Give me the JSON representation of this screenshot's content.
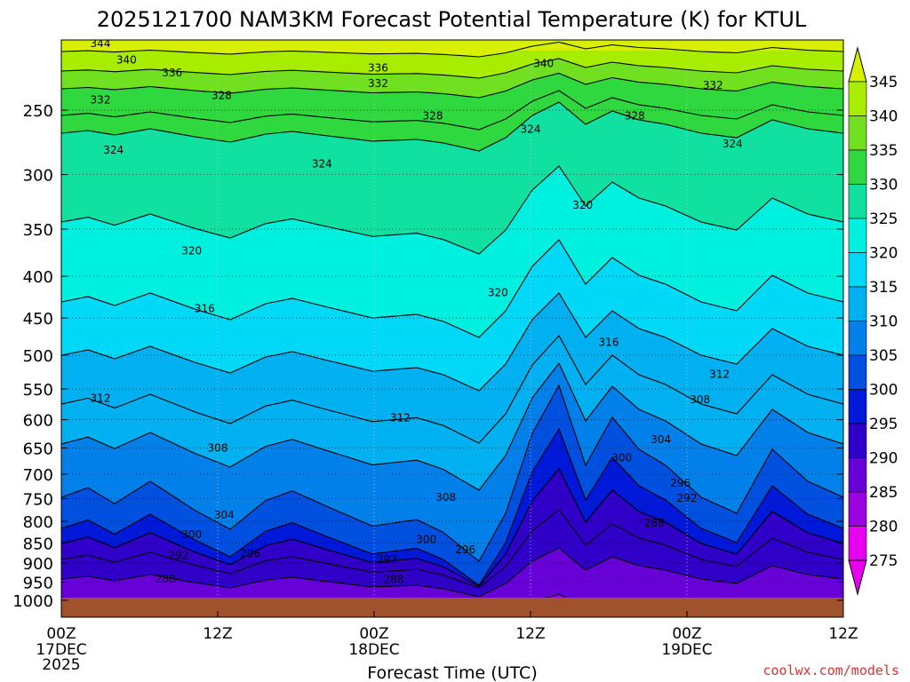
{
  "chart_data": {
    "type": "heatmap",
    "title": "2025121700 NAM3KM Forecast Potential Temperature (K) for KTUL",
    "xlabel": "Forecast Time (UTC)",
    "ylabel": "",
    "credit": "coolwx.com/models",
    "x_range_hours": [
      0,
      60
    ],
    "x_ticks": [
      {
        "hour": 0,
        "label": "00Z",
        "date": "17DEC",
        "year": "2025"
      },
      {
        "hour": 12,
        "label": "12Z",
        "date": "",
        "year": ""
      },
      {
        "hour": 24,
        "label": "00Z",
        "date": "18DEC",
        "year": ""
      },
      {
        "hour": 36,
        "label": "12Z",
        "date": "",
        "year": ""
      },
      {
        "hour": 48,
        "label": "00Z",
        "date": "19DEC",
        "year": ""
      },
      {
        "hour": 60,
        "label": "12Z",
        "date": "",
        "year": ""
      }
    ],
    "y_range_hpa": [
      1000,
      200
    ],
    "y_scale": "log",
    "y_ticks": [
      "250",
      "300",
      "350",
      "400",
      "450",
      "500",
      "550",
      "600",
      "650",
      "700",
      "750",
      "800",
      "850",
      "900",
      "950",
      "1000"
    ],
    "colorbar": {
      "labels": [
        "345",
        "340",
        "335",
        "330",
        "325",
        "320",
        "315",
        "310",
        "305",
        "300",
        "295",
        "290",
        "285",
        "280",
        "275"
      ],
      "colors": [
        "#d8f000",
        "#a8ec00",
        "#70e020",
        "#30d840",
        "#10e0a0",
        "#00f0e0",
        "#00d8f8",
        "#00b0f0",
        "#0080e8",
        "#0050e0",
        "#0018d8",
        "#3000c8",
        "#6800d8",
        "#9a00e0",
        "#e800f0"
      ]
    },
    "contour_labels": [
      {
        "value": "344",
        "hour": 3.0,
        "p": 207
      },
      {
        "value": "340",
        "hour": 5.0,
        "p": 217
      },
      {
        "value": "336",
        "hour": 8.5,
        "p": 225
      },
      {
        "value": "332",
        "hour": 3.0,
        "p": 243
      },
      {
        "value": "328",
        "hour": 12.3,
        "p": 240
      },
      {
        "value": "324",
        "hour": 4.0,
        "p": 280
      },
      {
        "value": "324",
        "hour": 20.0,
        "p": 291
      },
      {
        "value": "336",
        "hour": 24.3,
        "p": 222
      },
      {
        "value": "332",
        "hour": 24.3,
        "p": 232
      },
      {
        "value": "328",
        "hour": 28.5,
        "p": 254
      },
      {
        "value": "340",
        "hour": 37.0,
        "p": 219
      },
      {
        "value": "324",
        "hour": 36.0,
        "p": 264
      },
      {
        "value": "328",
        "hour": 44.0,
        "p": 254
      },
      {
        "value": "332",
        "hour": 50.0,
        "p": 233
      },
      {
        "value": "324",
        "hour": 51.5,
        "p": 275
      },
      {
        "value": "320",
        "hour": 40.0,
        "p": 327
      },
      {
        "value": "320",
        "hour": 10.0,
        "p": 372
      },
      {
        "value": "320",
        "hour": 33.5,
        "p": 419
      },
      {
        "value": "316",
        "hour": 11.0,
        "p": 438
      },
      {
        "value": "316",
        "hour": 42.0,
        "p": 482
      },
      {
        "value": "312",
        "hour": 3.0,
        "p": 565
      },
      {
        "value": "312",
        "hour": 50.5,
        "p": 528
      },
      {
        "value": "312",
        "hour": 26.0,
        "p": 597
      },
      {
        "value": "308",
        "hour": 49.0,
        "p": 567
      },
      {
        "value": "308",
        "hour": 12.0,
        "p": 650
      },
      {
        "value": "304",
        "hour": 46.0,
        "p": 635
      },
      {
        "value": "308",
        "hour": 29.5,
        "p": 747
      },
      {
        "value": "300",
        "hour": 43.0,
        "p": 668
      },
      {
        "value": "296",
        "hour": 47.5,
        "p": 718
      },
      {
        "value": "292",
        "hour": 48.0,
        "p": 749
      },
      {
        "value": "304",
        "hour": 12.5,
        "p": 786
      },
      {
        "value": "288",
        "hour": 45.5,
        "p": 804
      },
      {
        "value": "300",
        "hour": 10.0,
        "p": 830
      },
      {
        "value": "300",
        "hour": 28.0,
        "p": 842
      },
      {
        "value": "296",
        "hour": 14.5,
        "p": 876
      },
      {
        "value": "296",
        "hour": 31.0,
        "p": 867
      },
      {
        "value": "292",
        "hour": 9.0,
        "p": 881
      },
      {
        "value": "292",
        "hour": 25.0,
        "p": 891
      },
      {
        "value": "288",
        "hour": 8.0,
        "p": 942
      },
      {
        "value": "288",
        "hour": 25.5,
        "p": 943
      }
    ]
  }
}
